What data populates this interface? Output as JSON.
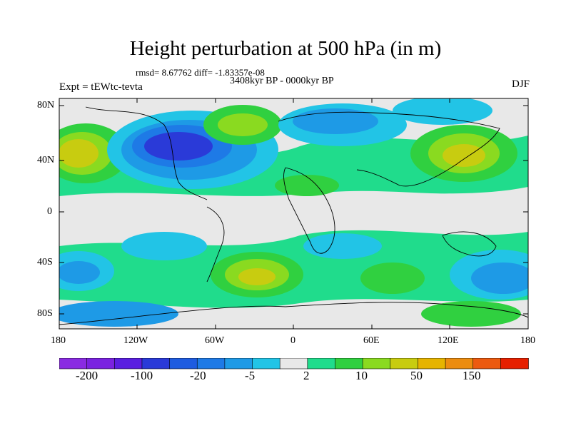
{
  "header": {
    "title": "Height perturbation at 500 hPa (in m)",
    "stats": "rmsd= 8.67762  diff= -1.83357e-08",
    "period": "3408kyr BP - 0000kyr BP",
    "experiment": "Expt = tEWtc-tevta",
    "season": "DJF"
  },
  "map": {
    "lat_labels": [
      "80N",
      "40N",
      "0",
      "40S",
      "80S"
    ],
    "lon_labels": [
      "180",
      "120W",
      "60W",
      "0",
      "60E",
      "120E",
      "180"
    ],
    "land_color": "#e8e8e8"
  },
  "colorbar": {
    "colors": [
      "#8a2be2",
      "#7a22e0",
      "#5a1ee0",
      "#2a3ad8",
      "#1e5ce0",
      "#1e7ae6",
      "#1e9ae6",
      "#22c4e6",
      "#e8e8e8",
      "#20dc8c",
      "#30d040",
      "#8ada20",
      "#c8cc10",
      "#e6b400",
      "#ec8c10",
      "#ec5a10",
      "#e62000"
    ],
    "labels": [
      "-200",
      "-100",
      "-20",
      "-5",
      "2",
      "10",
      "50",
      "150"
    ]
  }
}
